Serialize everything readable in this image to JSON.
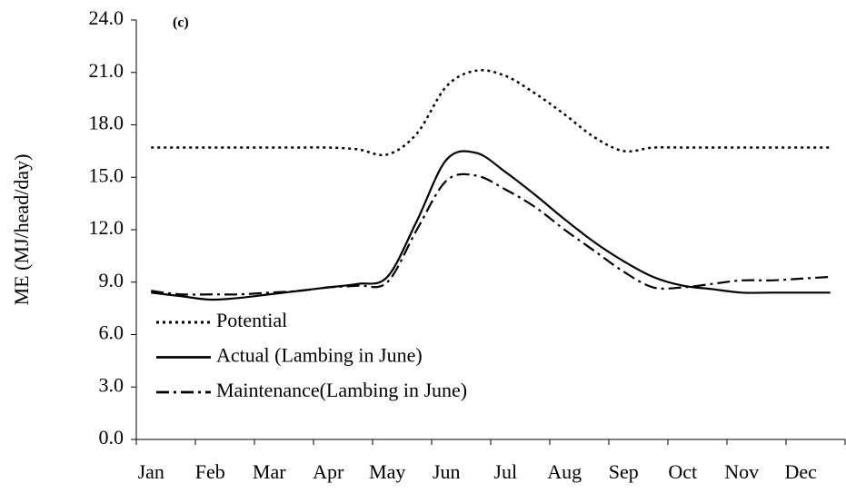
{
  "chart_data": {
    "type": "line",
    "annotation": "(c)",
    "y_label": "ME (MJ/head/day)",
    "categories": [
      "Jan",
      null,
      "Feb",
      null,
      "Mar",
      null,
      "Apr",
      null,
      "May",
      null,
      "Jun",
      null,
      "Jul",
      null,
      "Aug",
      null,
      "Sep",
      null,
      "Oct",
      null,
      "Nov",
      null,
      "Dec",
      null
    ],
    "series": [
      {
        "name": "Potential",
        "color": "#000000",
        "dash": "dotted",
        "values": [
          16.7,
          16.7,
          16.7,
          16.7,
          16.7,
          16.7,
          16.7,
          16.6,
          16.3,
          17.5,
          20.2,
          21.1,
          20.8,
          19.8,
          18.6,
          17.3,
          16.5,
          16.7,
          16.7,
          16.7,
          16.7,
          16.7,
          16.7,
          16.7
        ]
      },
      {
        "name": "Actual (Lambing in June)",
        "color": "#000000",
        "dash": "solid",
        "values": [
          8.4,
          8.2,
          8.0,
          8.1,
          8.3,
          8.5,
          8.7,
          8.9,
          9.3,
          12.5,
          16.0,
          16.4,
          15.3,
          14.0,
          12.6,
          11.3,
          10.2,
          9.3,
          8.8,
          8.6,
          8.4,
          8.4,
          8.4,
          8.4
        ]
      },
      {
        "name": "Maintenance(Lambing in June)",
        "color": "#000000",
        "dash": "dashdot",
        "values": [
          8.5,
          8.3,
          8.3,
          8.3,
          8.4,
          8.5,
          8.7,
          8.8,
          9.0,
          12.0,
          14.8,
          15.1,
          14.3,
          13.3,
          12.0,
          10.8,
          9.6,
          8.7,
          8.7,
          8.9,
          9.1,
          9.1,
          9.2,
          9.3
        ]
      }
    ],
    "ylim": [
      0,
      24
    ],
    "yticks": [
      {
        "value": 0,
        "label": "0.0"
      },
      {
        "value": 3,
        "label": "3.0"
      },
      {
        "value": 6,
        "label": "6.0"
      },
      {
        "value": 9,
        "label": "9.0"
      },
      {
        "value": 12,
        "label": "12.0"
      },
      {
        "value": 15,
        "label": "15.0"
      },
      {
        "value": 18,
        "label": "18.0"
      },
      {
        "value": 21,
        "label": "21.0"
      },
      {
        "value": 24,
        "label": "24.0"
      }
    ],
    "grid": false,
    "legend": "lower left"
  }
}
